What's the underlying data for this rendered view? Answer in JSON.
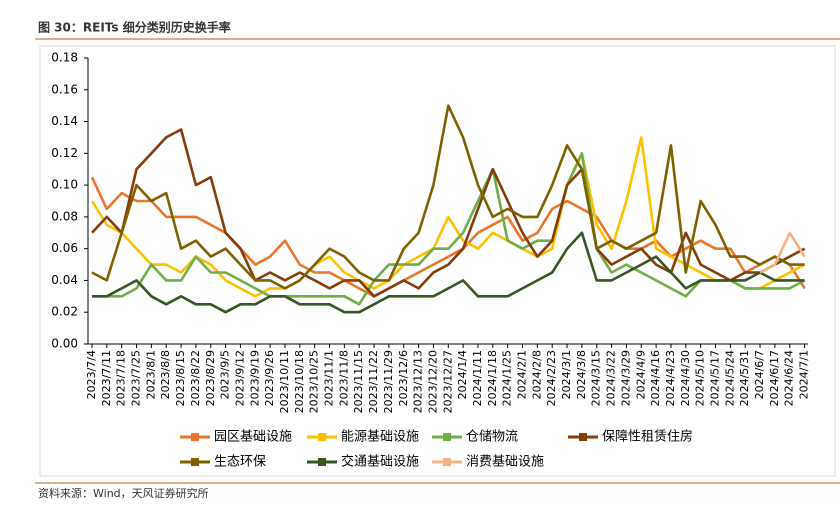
{
  "chart_data": {
    "type": "line",
    "title": "图 30：REITs 细分类别历史换手率",
    "source": "资料来源：Wind，天风证券研究所",
    "categories": [
      "2023/7/4",
      "2023/7/11",
      "2023/7/18",
      "2023/7/25",
      "2023/8/1",
      "2023/8/8",
      "2023/8/15",
      "2023/8/22",
      "2023/8/29",
      "2023/9/5",
      "2023/9/12",
      "2023/9/19",
      "2023/9/26",
      "2023/10/11",
      "2023/10/18",
      "2023/10/25",
      "2023/11/1",
      "2023/11/8",
      "2023/11/15",
      "2023/11/22",
      "2023/11/29",
      "2023/12/6",
      "2023/12/13",
      "2023/12/20",
      "2023/12/27",
      "2024/1/4",
      "2024/1/11",
      "2024/1/18",
      "2024/1/25",
      "2024/2/1",
      "2024/2/8",
      "2024/2/23",
      "2024/3/1",
      "2024/3/8",
      "2024/3/15",
      "2024/3/22",
      "2024/3/29",
      "2024/4/9",
      "2024/4/16",
      "2024/4/23",
      "2024/4/30",
      "2024/5/10",
      "2024/5/17",
      "2024/5/24",
      "2024/5/31",
      "2024/6/7",
      "2024/6/17",
      "2024/6/24",
      "2024/7/1"
    ],
    "series": [
      {
        "name": "园区基础设施",
        "color": "#E8762B",
        "values": [
          0.105,
          0.085,
          0.095,
          0.09,
          0.09,
          0.08,
          0.08,
          0.08,
          0.075,
          0.07,
          0.06,
          0.05,
          0.055,
          0.065,
          0.05,
          0.045,
          0.045,
          0.04,
          0.035,
          0.03,
          0.035,
          0.04,
          0.045,
          0.05,
          0.055,
          0.06,
          0.07,
          0.075,
          0.08,
          0.065,
          0.07,
          0.085,
          0.09,
          0.085,
          0.08,
          0.065,
          0.06,
          0.06,
          0.065,
          0.055,
          0.06,
          0.065,
          0.06,
          0.06,
          0.045,
          0.05,
          0.055,
          0.05,
          0.035
        ]
      },
      {
        "name": "能源基础设施",
        "color": "#FFC000",
        "values": [
          0.09,
          0.075,
          0.07,
          0.06,
          0.05,
          0.05,
          0.045,
          0.055,
          0.05,
          0.04,
          0.035,
          0.03,
          0.035,
          0.035,
          0.04,
          0.05,
          0.055,
          0.045,
          0.04,
          0.035,
          0.04,
          0.05,
          0.055,
          0.06,
          0.08,
          0.065,
          0.06,
          0.07,
          0.065,
          0.06,
          0.055,
          0.06,
          0.1,
          0.12,
          0.075,
          0.06,
          0.09,
          0.13,
          0.06,
          0.055,
          0.05,
          0.045,
          0.04,
          0.04,
          0.035,
          0.035,
          0.04,
          0.045,
          0.05
        ]
      },
      {
        "name": "仓储物流",
        "color": "#70AD47",
        "values": [
          0.03,
          0.03,
          0.03,
          0.035,
          0.05,
          0.04,
          0.04,
          0.055,
          0.045,
          0.045,
          0.04,
          0.035,
          0.03,
          0.03,
          0.03,
          0.03,
          0.03,
          0.03,
          0.025,
          0.04,
          0.05,
          0.05,
          0.05,
          0.06,
          0.06,
          0.07,
          0.09,
          0.11,
          0.065,
          0.06,
          0.065,
          0.065,
          0.1,
          0.12,
          0.06,
          0.045,
          0.05,
          0.045,
          0.04,
          0.035,
          0.03,
          0.04,
          0.04,
          0.04,
          0.035,
          0.035,
          0.035,
          0.035,
          0.04
        ]
      },
      {
        "name": "保障性租赁住房",
        "color": "#843C0C",
        "values": [
          0.07,
          0.08,
          0.07,
          0.11,
          0.12,
          0.13,
          0.135,
          0.1,
          0.105,
          0.07,
          0.06,
          0.04,
          0.045,
          0.04,
          0.045,
          0.04,
          0.035,
          0.04,
          0.04,
          0.03,
          0.035,
          0.04,
          0.035,
          0.045,
          0.05,
          0.06,
          0.085,
          0.11,
          0.09,
          0.07,
          0.055,
          0.065,
          0.1,
          0.11,
          0.06,
          0.05,
          0.055,
          0.06,
          0.05,
          0.045,
          0.07,
          0.05,
          0.045,
          0.04,
          0.045,
          0.045,
          0.05,
          0.055,
          0.06
        ]
      },
      {
        "name": "生态环保",
        "color": "#7F6000",
        "values": [
          0.045,
          0.04,
          0.07,
          0.1,
          0.09,
          0.095,
          0.06,
          0.065,
          0.055,
          0.06,
          0.05,
          0.04,
          0.04,
          0.035,
          0.04,
          0.05,
          0.06,
          0.055,
          0.045,
          0.04,
          0.04,
          0.06,
          0.07,
          0.1,
          0.15,
          0.13,
          0.1,
          0.08,
          0.085,
          0.08,
          0.08,
          0.1,
          0.125,
          0.11,
          0.06,
          0.065,
          0.06,
          0.065,
          0.07,
          0.125,
          0.045,
          0.09,
          0.075,
          0.055,
          0.055,
          0.05,
          0.055,
          0.05,
          0.05
        ]
      },
      {
        "name": "交通基础设施",
        "color": "#375623",
        "values": [
          0.03,
          0.03,
          0.035,
          0.04,
          0.03,
          0.025,
          0.03,
          0.025,
          0.025,
          0.02,
          0.025,
          0.025,
          0.03,
          0.03,
          0.025,
          0.025,
          0.025,
          0.02,
          0.02,
          0.025,
          0.03,
          0.03,
          0.03,
          0.03,
          0.035,
          0.04,
          0.03,
          0.03,
          0.03,
          0.035,
          0.04,
          0.045,
          0.06,
          0.07,
          0.04,
          0.04,
          0.045,
          0.05,
          0.055,
          0.045,
          0.035,
          0.04,
          0.04,
          0.04,
          0.04,
          0.045,
          0.04,
          0.04,
          0.04
        ]
      },
      {
        "name": "消费基础设施",
        "color": "#F4B183",
        "values": [
          null,
          null,
          null,
          null,
          null,
          null,
          null,
          null,
          null,
          null,
          null,
          null,
          null,
          null,
          null,
          null,
          null,
          null,
          null,
          null,
          null,
          null,
          null,
          null,
          null,
          null,
          null,
          null,
          null,
          null,
          null,
          null,
          null,
          null,
          null,
          null,
          null,
          null,
          null,
          null,
          null,
          null,
          null,
          null,
          null,
          0.045,
          0.05,
          0.07,
          0.055
        ]
      }
    ],
    "ylim": [
      0,
      0.18
    ],
    "yticks": [
      {
        "value": 0,
        "label": "0.00"
      },
      {
        "value": 0.02,
        "label": "0.02"
      },
      {
        "value": 0.04,
        "label": "0.04"
      },
      {
        "value": 0.06,
        "label": "0.06"
      },
      {
        "value": 0.08,
        "label": "0.08"
      },
      {
        "value": 0.1,
        "label": "0.10"
      },
      {
        "value": 0.12,
        "label": "0.12"
      },
      {
        "value": 0.14,
        "label": "0.14"
      },
      {
        "value": 0.16,
        "label": "0.16"
      },
      {
        "value": 0.18,
        "label": "0.18"
      }
    ],
    "grid": false
  }
}
